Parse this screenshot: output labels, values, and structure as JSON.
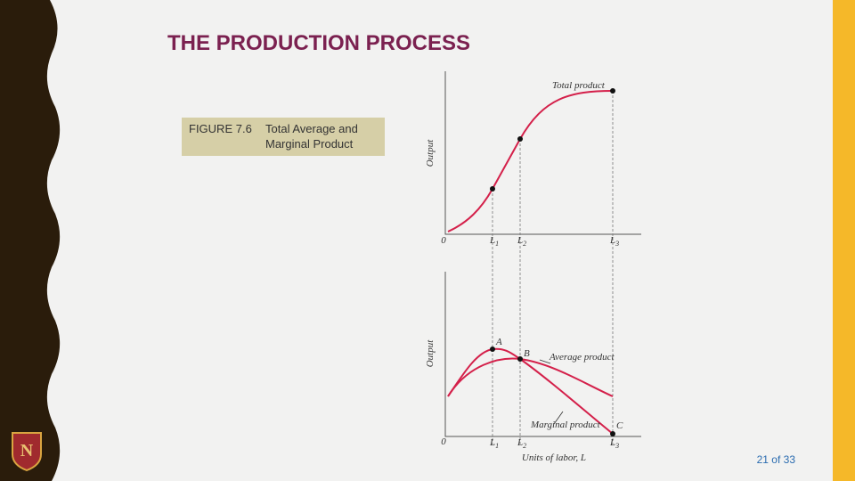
{
  "slide": {
    "title": "THE PRODUCTION PROCESS",
    "page": "21 of 33",
    "logo": "N"
  },
  "caption": {
    "figure": "FIGURE 7.6",
    "text_lines": [
      "Total Average and",
      "Marginal Product"
    ]
  },
  "top_graph": {
    "y_label": "Output",
    "origin": "0",
    "curve_label": "Total product",
    "x_marks": [
      {
        "letter": "L",
        "sub": "1"
      },
      {
        "letter": "L",
        "sub": "2"
      },
      {
        "letter": "L",
        "sub": "3"
      }
    ]
  },
  "bottom_graph": {
    "y_label": "Output",
    "origin": "0",
    "points": [
      "A",
      "B",
      "C"
    ],
    "average_label": "Average product",
    "marginal_label": "Marginal product",
    "x_marks": [
      {
        "letter": "L",
        "sub": "1"
      },
      {
        "letter": "L",
        "sub": "2"
      },
      {
        "letter": "L",
        "sub": "3"
      }
    ],
    "x_label": "Units of labor, L"
  }
}
